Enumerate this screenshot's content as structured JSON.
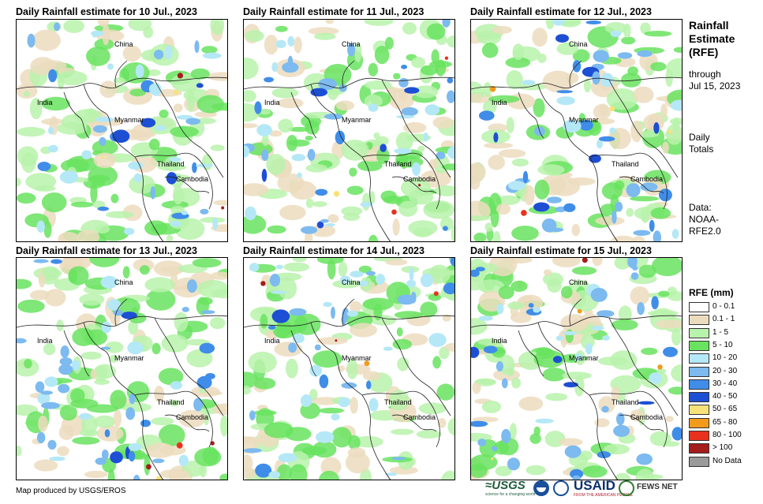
{
  "panels": [
    {
      "title": "Daily Rainfall estimate for 10 Jul., 2023",
      "seed": 10
    },
    {
      "title": "Daily Rainfall estimate for 11 Jul., 2023",
      "seed": 11
    },
    {
      "title": "Daily Rainfall estimate for 12 Jul., 2023",
      "seed": 12
    },
    {
      "title": "Daily Rainfall estimate for 13 Jul., 2023",
      "seed": 13
    },
    {
      "title": "Daily Rainfall estimate for 14 Jul., 2023",
      "seed": 14
    },
    {
      "title": "Daily Rainfall estimate for 15 Jul., 2023",
      "seed": 15
    }
  ],
  "places": {
    "china": "China",
    "india": "India",
    "myanmar": "Myanmar",
    "thailand": "Thailand",
    "cambodia": "Cambodia"
  },
  "side": {
    "heading_1": "Rainfall",
    "heading_2": "Estimate",
    "heading_3": "(RFE)",
    "through_1": "through",
    "through_2": "Jul 15, 2023",
    "totals_1": "Daily",
    "totals_2": "Totals",
    "data_1": "Data:",
    "data_2": "NOAA-",
    "data_3": "RFE2.0"
  },
  "legend": {
    "title": "RFE (mm)",
    "items": [
      {
        "label": "0 - 0.1",
        "color": "#ffffff"
      },
      {
        "label": "0.1 - 1",
        "color": "#ecdcbe"
      },
      {
        "label": "1 - 5",
        "color": "#b9f2ac"
      },
      {
        "label": "5 - 10",
        "color": "#69e35f"
      },
      {
        "label": "10 - 20",
        "color": "#b5e8f7"
      },
      {
        "label": "20 - 30",
        "color": "#7cbaf0"
      },
      {
        "label": "30 - 40",
        "color": "#3f8de8"
      },
      {
        "label": "40 - 50",
        "color": "#1d4fd4"
      },
      {
        "label": "50 - 65",
        "color": "#f7e27a"
      },
      {
        "label": "65 - 80",
        "color": "#f29a1c"
      },
      {
        "label": "80 - 100",
        "color": "#e8321e"
      },
      {
        "label": "> 100",
        "color": "#a51c1c"
      },
      {
        "label": "No Data",
        "color": "#9a9a9a"
      }
    ]
  },
  "footer": {
    "credit": "Map produced by USGS/EROS",
    "usgs": "≈USGS",
    "usgs_tag": "science for a changing world",
    "usaid": "USAID",
    "usaid_tag": "FROM THE AMERICAN PEOPLE",
    "fews": "FEWS NET"
  }
}
